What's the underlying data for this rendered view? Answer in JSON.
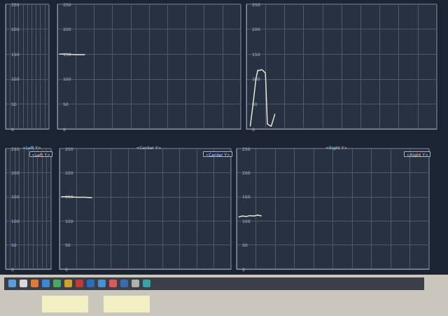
{
  "chart_data": [
    {
      "type": "line",
      "xlim": [
        0,
        10
      ],
      "xticks": [
        0,
        1,
        2,
        3,
        4,
        5,
        6,
        7,
        8,
        9,
        10
      ],
      "ylim": [
        0,
        250
      ],
      "yticks": [
        0,
        50,
        100,
        150,
        200,
        250
      ],
      "grid": true,
      "tick_labels": "y",
      "color": "#e6e6d2",
      "x": [],
      "values": []
    },
    {
      "type": "line",
      "xlim": [
        0,
        10
      ],
      "xticks": [
        0,
        1,
        2,
        3,
        4,
        5,
        6,
        7,
        8,
        9,
        10
      ],
      "ylim": [
        0,
        250
      ],
      "yticks": [
        0,
        50,
        100,
        150,
        200,
        250
      ],
      "grid": true,
      "tick_labels": "y",
      "color": "#e6e6d2",
      "x": [
        0.1,
        0.5,
        1.0,
        1.5
      ],
      "values": [
        150,
        150,
        149,
        149
      ]
    },
    {
      "type": "line",
      "xlim": [
        0,
        10
      ],
      "xticks": [
        0,
        1,
        2,
        3,
        4,
        5,
        6,
        7,
        8,
        9,
        10
      ],
      "ylim": [
        0,
        250
      ],
      "yticks": [
        0,
        50,
        100,
        150,
        200,
        250
      ],
      "grid": true,
      "tick_labels": "y",
      "color": "#e6e6d2",
      "x": [
        0.2,
        0.35,
        0.5,
        0.6,
        0.7,
        0.8,
        0.9,
        1.0,
        1.1,
        1.3,
        1.5
      ],
      "values": [
        5,
        50,
        100,
        118,
        117,
        119,
        116,
        112,
        10,
        5,
        30
      ]
    },
    {
      "type": "line",
      "title": "<Left Y>",
      "xlim": [
        0,
        10
      ],
      "xticks": [
        0,
        1,
        2,
        3,
        4,
        5,
        6,
        7,
        8,
        9,
        10
      ],
      "ylim": [
        0,
        250
      ],
      "yticks": [
        0,
        50,
        100,
        150,
        200,
        250
      ],
      "grid": true,
      "tick_labels": "y",
      "color": "#e6e6d2",
      "x": [],
      "values": []
    },
    {
      "type": "line",
      "title": "<Center Y>",
      "xlim": [
        0,
        10
      ],
      "xticks": [
        0,
        1,
        2,
        3,
        4,
        5,
        6,
        7,
        8,
        9,
        10
      ],
      "ylim": [
        0,
        250
      ],
      "yticks": [
        0,
        50,
        100,
        150,
        200,
        250
      ],
      "grid": true,
      "tick_labels": "y",
      "color": "#e6e6d2",
      "x": [
        0.1,
        0.5,
        1.0,
        1.5,
        1.9
      ],
      "values": [
        150,
        150,
        149,
        149,
        148
      ]
    },
    {
      "type": "line",
      "title": "<Right Y>",
      "xlim": [
        0,
        10
      ],
      "xticks": [
        0,
        1,
        2,
        3,
        4,
        5,
        6,
        7,
        8,
        9,
        10
      ],
      "ylim": [
        0,
        250
      ],
      "yticks": [
        0,
        50,
        100,
        150,
        200,
        250
      ],
      "grid": true,
      "tick_labels": "y",
      "color": "#e6e6d2",
      "x": [
        0.1,
        0.3,
        0.5,
        0.7,
        0.9,
        1.1,
        1.3
      ],
      "values": [
        108,
        110,
        109,
        111,
        110,
        112,
        110
      ]
    }
  ]
}
